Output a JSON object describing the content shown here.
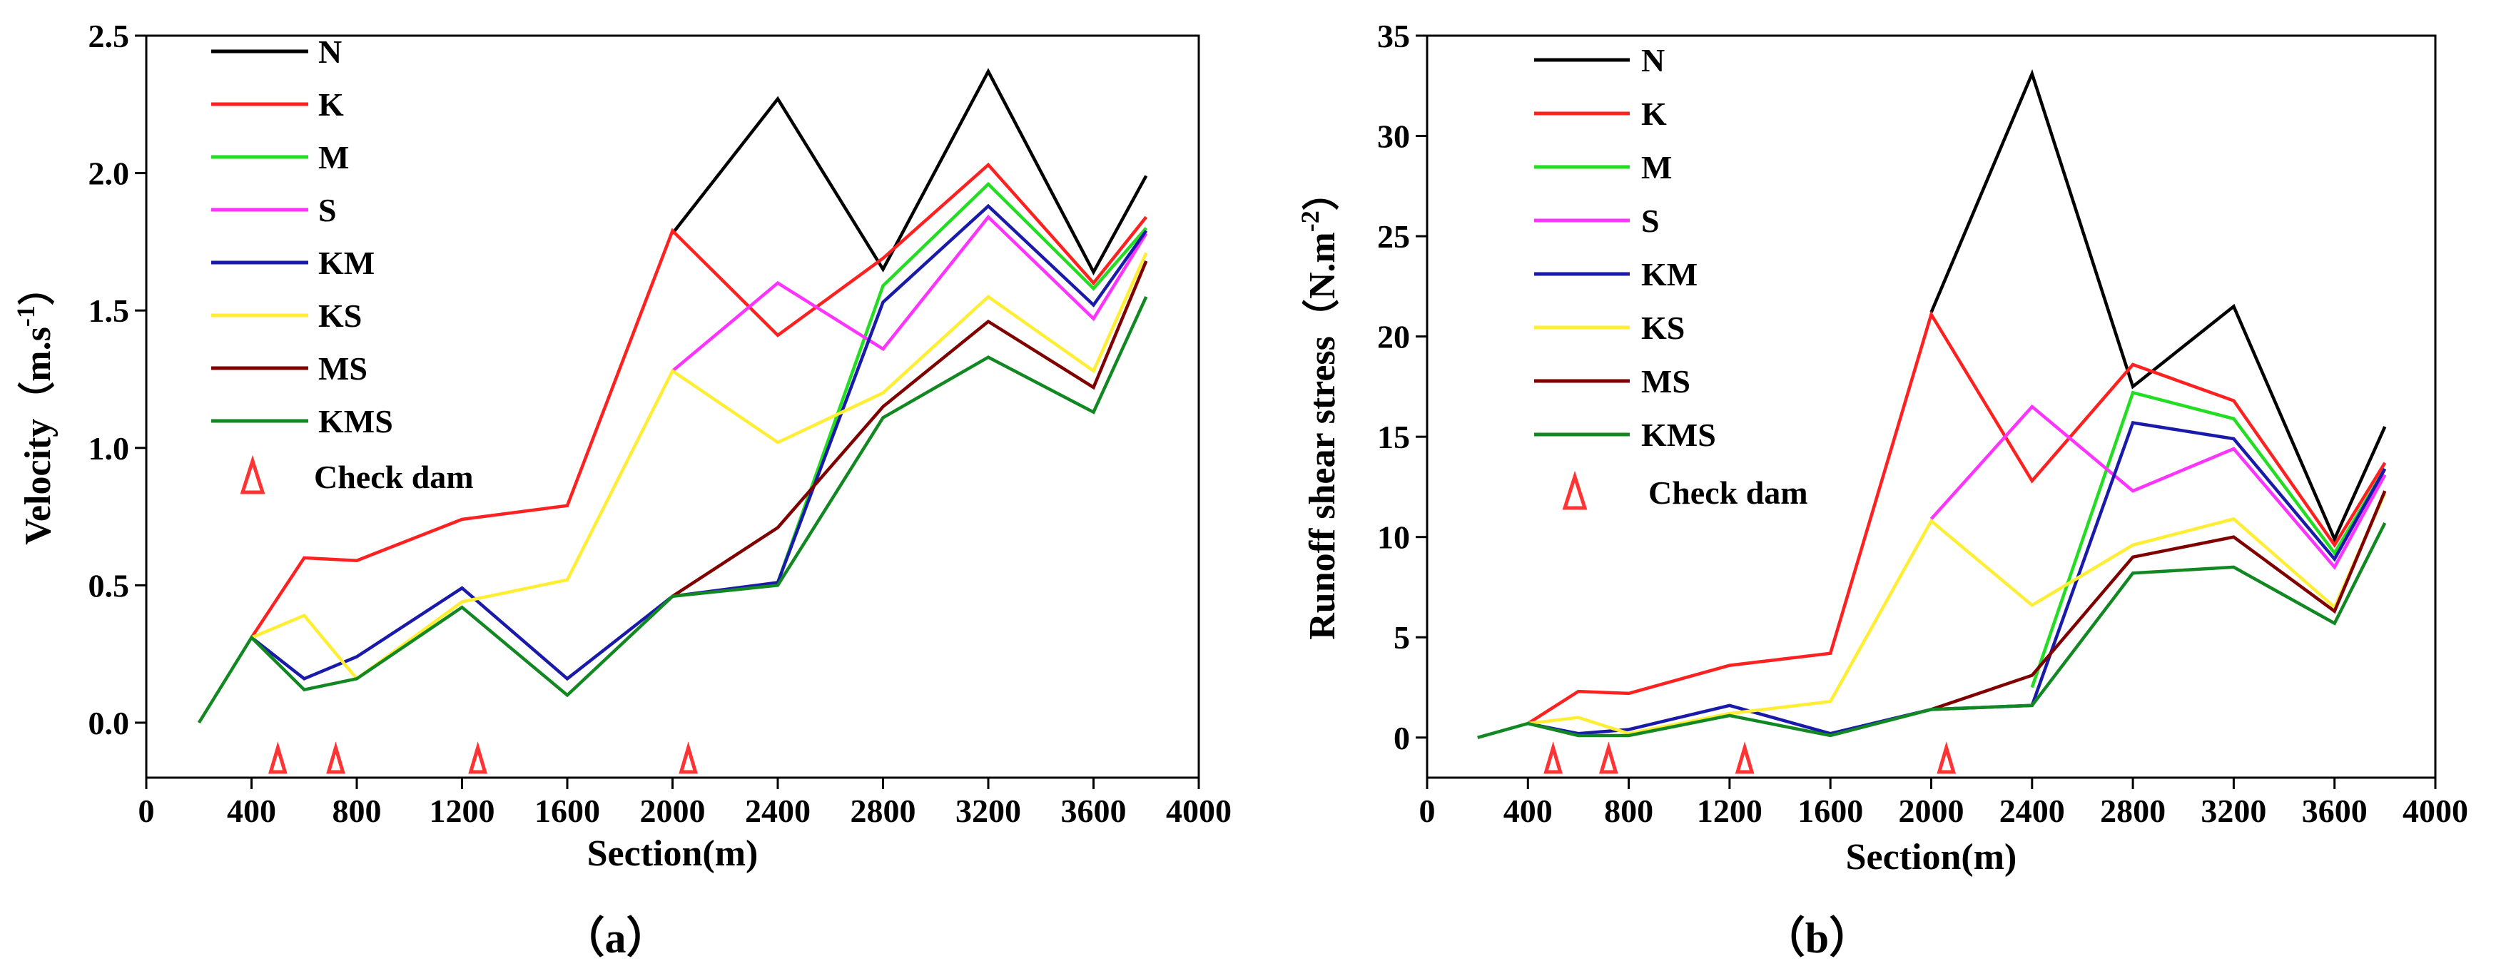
{
  "chart_data": [
    {
      "type": "line",
      "panel_label": "（a）",
      "xlabel": "Section(m)",
      "ylabel_main": "Velocity（m.s",
      "ylabel_sup": "-1",
      "ylabel_end": "）",
      "xlim": [
        0,
        4000
      ],
      "ylim": [
        -0.2,
        2.5
      ],
      "xticks": [
        0,
        400,
        800,
        1200,
        1600,
        2000,
        2400,
        2800,
        3200,
        3600,
        4000
      ],
      "yticks": [
        0.0,
        0.5,
        1.0,
        1.5,
        2.0,
        2.5
      ],
      "ytick_labels": [
        "0.0",
        "0.5",
        "1.0",
        "1.5",
        "2.0",
        "2.5"
      ],
      "check_dam_x": [
        500,
        720,
        1260,
        2060
      ],
      "check_dam_label": "Check dam",
      "legend_position": "top-left",
      "series": [
        {
          "name": "N",
          "color": "#000000",
          "x": [
            2000,
            2400,
            2800,
            3200,
            3600,
            3800
          ],
          "values": [
            1.78,
            2.27,
            1.65,
            2.37,
            1.64,
            1.99
          ]
        },
        {
          "name": "K",
          "color": "#ff2020",
          "x": [
            400,
            600,
            800,
            1200,
            1600,
            2000,
            2400,
            2800,
            3200,
            3600,
            3800
          ],
          "values": [
            0.31,
            0.6,
            0.59,
            0.74,
            0.79,
            1.79,
            1.41,
            1.69,
            2.03,
            1.6,
            1.84
          ]
        },
        {
          "name": "M",
          "color": "#22dd22",
          "x": [
            2400,
            2800,
            3200,
            3600,
            3800
          ],
          "values": [
            0.51,
            1.59,
            1.96,
            1.58,
            1.8
          ]
        },
        {
          "name": "S",
          "color": "#ff33ff",
          "x": [
            2000,
            2400,
            2800,
            3200,
            3600,
            3800
          ],
          "values": [
            1.28,
            1.6,
            1.36,
            1.84,
            1.47,
            1.78
          ]
        },
        {
          "name": "KM",
          "color": "#1a1aaa",
          "x": [
            400,
            600,
            800,
            1200,
            1600,
            2000,
            2400,
            2800,
            3200,
            3600,
            3800
          ],
          "values": [
            0.31,
            0.16,
            0.24,
            0.49,
            0.16,
            0.46,
            0.51,
            1.53,
            1.88,
            1.52,
            1.79
          ]
        },
        {
          "name": "KS",
          "color": "#ffee33",
          "x": [
            400,
            600,
            800,
            1200,
            1600,
            2000,
            2400,
            2800,
            3200,
            3600,
            3800
          ],
          "values": [
            0.31,
            0.39,
            0.16,
            0.44,
            0.52,
            1.28,
            1.02,
            1.2,
            1.55,
            1.28,
            1.71
          ]
        },
        {
          "name": "MS",
          "color": "#800000",
          "x": [
            2000,
            2400,
            2800,
            3200,
            3600,
            3800
          ],
          "values": [
            0.46,
            0.71,
            1.15,
            1.46,
            1.22,
            1.68
          ]
        },
        {
          "name": "KMS",
          "color": "#118822",
          "x": [
            200,
            400,
            600,
            800,
            1200,
            1600,
            2000,
            2400,
            2800,
            3200,
            3600,
            3800
          ],
          "values": [
            0.0,
            0.31,
            0.12,
            0.16,
            0.42,
            0.1,
            0.46,
            0.5,
            1.11,
            1.33,
            1.13,
            1.55
          ]
        }
      ]
    },
    {
      "type": "line",
      "panel_label": "（b）",
      "xlabel": "Section(m)",
      "ylabel_main": "Runoff shear stress（N.m",
      "ylabel_sup": "-2",
      "ylabel_end": "）",
      "xlim": [
        0,
        4000
      ],
      "ylim": [
        -2,
        35
      ],
      "xticks": [
        0,
        400,
        800,
        1200,
        1600,
        2000,
        2400,
        2800,
        3200,
        3600,
        4000
      ],
      "yticks": [
        0,
        5,
        10,
        15,
        20,
        25,
        30,
        35
      ],
      "ytick_labels": [
        "0",
        "5",
        "10",
        "15",
        "20",
        "25",
        "30",
        "35"
      ],
      "check_dam_x": [
        500,
        720,
        1260,
        2060
      ],
      "check_dam_label": "Check dam",
      "legend_position": "top-left",
      "series": [
        {
          "name": "N",
          "color": "#000000",
          "x": [
            2000,
            2400,
            2800,
            3200,
            3600,
            3800
          ],
          "values": [
            21.2,
            33.1,
            17.5,
            21.5,
            9.9,
            15.5
          ]
        },
        {
          "name": "K",
          "color": "#ff2020",
          "x": [
            400,
            600,
            800,
            1200,
            1600,
            2000,
            2400,
            2800,
            3200,
            3600,
            3800
          ],
          "values": [
            0.7,
            2.3,
            2.2,
            3.6,
            4.2,
            21.1,
            12.8,
            18.6,
            16.8,
            9.6,
            13.7
          ]
        },
        {
          "name": "M",
          "color": "#22dd22",
          "x": [
            2400,
            2800,
            3200,
            3600,
            3800
          ],
          "values": [
            2.5,
            17.2,
            15.9,
            9.2,
            13.4
          ]
        },
        {
          "name": "S",
          "color": "#ff33ff",
          "x": [
            2000,
            2400,
            2800,
            3200,
            3600,
            3800
          ],
          "values": [
            10.9,
            16.5,
            12.3,
            14.4,
            8.5,
            13.1
          ]
        },
        {
          "name": "KM",
          "color": "#1a1aaa",
          "x": [
            400,
            600,
            800,
            1200,
            1600,
            2000,
            2400,
            2800,
            3200,
            3600,
            3800
          ],
          "values": [
            0.7,
            0.2,
            0.4,
            1.6,
            0.2,
            1.4,
            1.6,
            15.7,
            14.9,
            8.9,
            13.4
          ]
        },
        {
          "name": "KS",
          "color": "#ffee33",
          "x": [
            400,
            600,
            800,
            1200,
            1600,
            2000,
            2400,
            2800,
            3200,
            3600,
            3800
          ],
          "values": [
            0.7,
            1.0,
            0.2,
            1.2,
            1.8,
            10.8,
            6.6,
            9.6,
            10.9,
            6.5,
            12.2
          ]
        },
        {
          "name": "MS",
          "color": "#800000",
          "x": [
            2000,
            2400,
            2800,
            3200,
            3600,
            3800
          ],
          "values": [
            1.4,
            3.1,
            9.0,
            10.0,
            6.3,
            12.3
          ]
        },
        {
          "name": "KMS",
          "color": "#118822",
          "x": [
            200,
            400,
            600,
            800,
            1200,
            1600,
            2000,
            2400,
            2800,
            3200,
            3600,
            3800
          ],
          "values": [
            0.0,
            0.7,
            0.1,
            0.1,
            1.1,
            0.1,
            1.4,
            1.6,
            8.2,
            8.5,
            5.7,
            10.7
          ]
        }
      ]
    }
  ]
}
